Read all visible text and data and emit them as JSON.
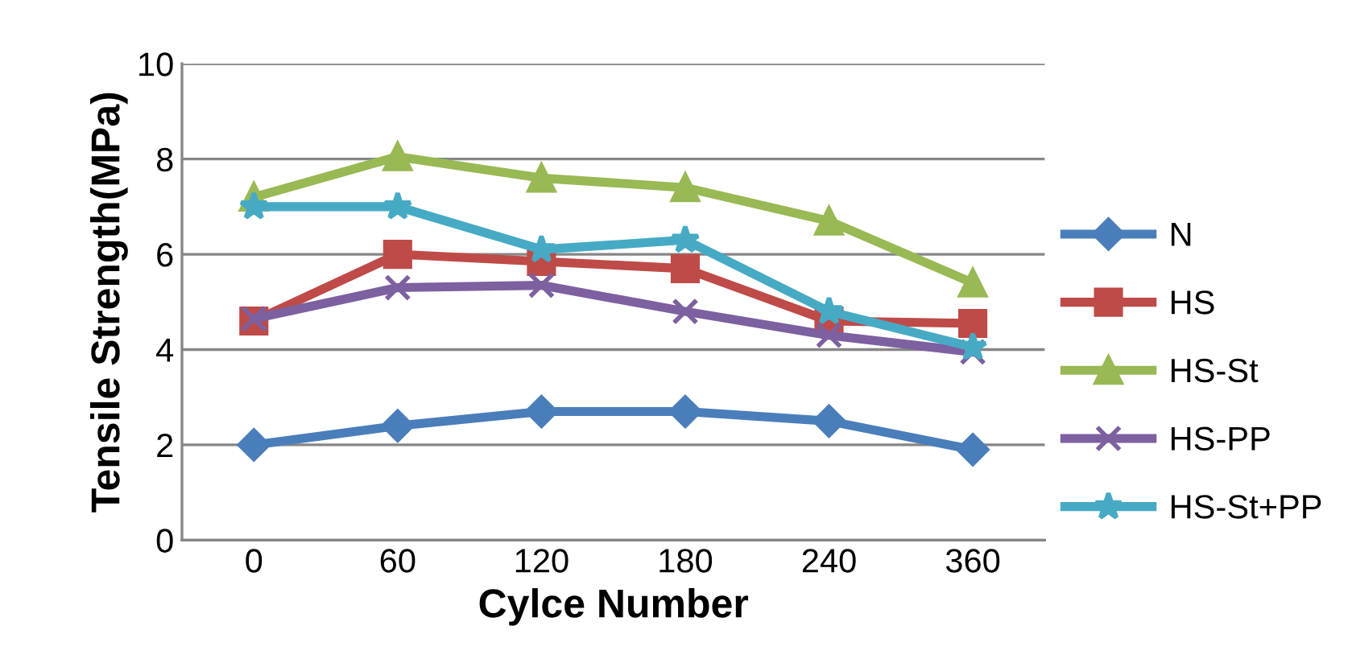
{
  "chart_data": {
    "type": "line",
    "xlabel": "Cylce Number",
    "ylabel": "Tensile Strength(MPa)",
    "categories": [
      "0",
      "60",
      "120",
      "180",
      "240",
      "360"
    ],
    "ylim": [
      0,
      10
    ],
    "yticks": [
      0,
      2,
      4,
      6,
      8,
      10
    ],
    "grid": "y",
    "legend": "right",
    "series": [
      {
        "name": "N",
        "color": "#4a7ebb",
        "marker": "diamond",
        "values": [
          2.0,
          2.4,
          2.7,
          2.7,
          2.5,
          1.9
        ]
      },
      {
        "name": "HS",
        "color": "#be4b48",
        "marker": "square",
        "values": [
          4.6,
          6.0,
          5.85,
          5.7,
          4.6,
          4.55
        ]
      },
      {
        "name": "HS-St",
        "color": "#98b954",
        "marker": "triangle",
        "values": [
          7.2,
          8.05,
          7.6,
          7.4,
          6.7,
          5.4
        ]
      },
      {
        "name": "HS-PP",
        "color": "#7d60a0",
        "marker": "cross",
        "values": [
          4.65,
          5.3,
          5.35,
          4.8,
          4.3,
          3.95
        ]
      },
      {
        "name": "HS-St+PP",
        "color": "#46aac5",
        "marker": "star",
        "values": [
          7.0,
          7.0,
          6.1,
          6.3,
          4.8,
          4.05
        ]
      }
    ]
  }
}
